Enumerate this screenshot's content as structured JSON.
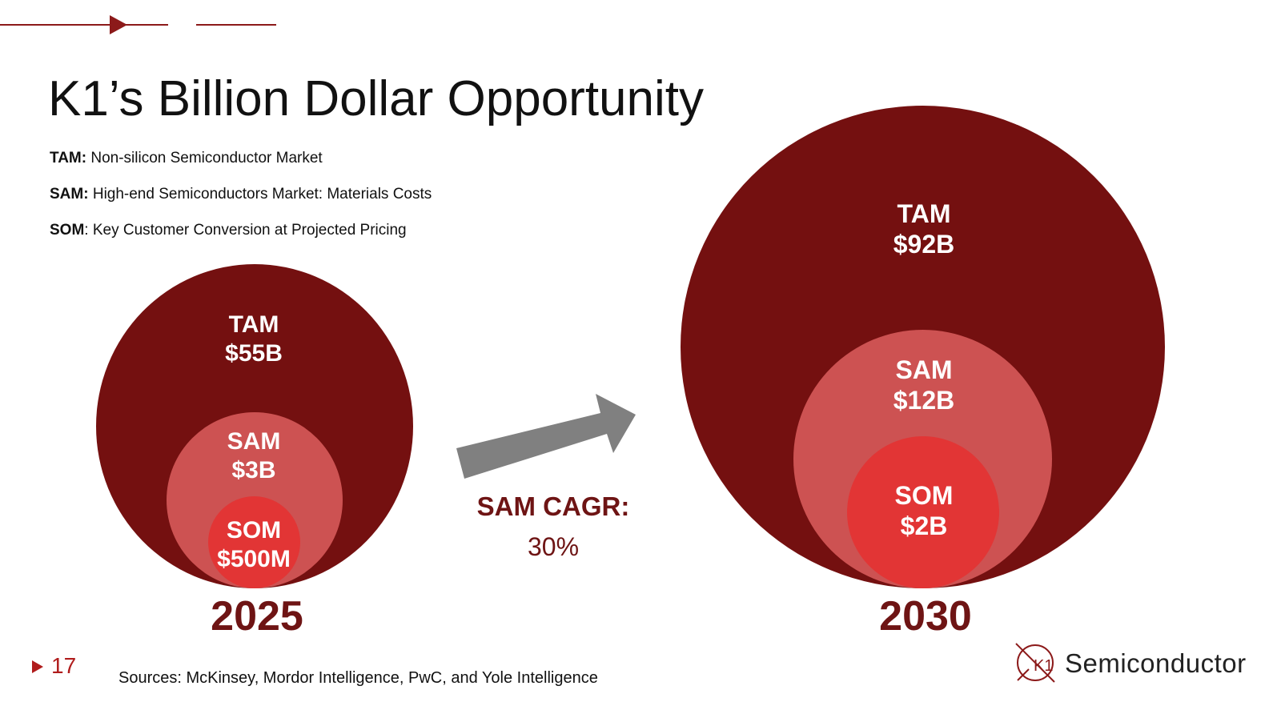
{
  "slide": {
    "title": "K1’s Billion Dollar Opportunity",
    "definitions": [
      {
        "term": "TAM:",
        "text": " Non-silicon Semiconductor Market"
      },
      {
        "term": "SAM:",
        "text": " High-end Semiconductors Market: Materials Costs"
      },
      {
        "term": "SOM",
        "text": ": Key Customer Conversion at Projected Pricing"
      }
    ],
    "page_number": "17",
    "sources": "Sources: McKinsey, Mordor Intelligence, PwC, and Yole Intelligence",
    "logo_text": "Semiconductor",
    "logo_mark": "K1"
  },
  "diagram": {
    "y2025": {
      "year": "2025",
      "tam": {
        "label": "TAM",
        "value": "$55B"
      },
      "sam": {
        "label": "SAM",
        "value": "$3B"
      },
      "som": {
        "label": "SOM",
        "value": "$500M"
      }
    },
    "y2030": {
      "year": "2030",
      "tam": {
        "label": "TAM",
        "value": "$92B"
      },
      "sam": {
        "label": "SAM",
        "value": "$12B"
      },
      "som": {
        "label": "SOM",
        "value": "$2B"
      }
    },
    "growth": {
      "label": "SAM CAGR:",
      "value": "30%"
    }
  },
  "colors": {
    "tam": "#741010",
    "sam": "#cd5252",
    "som": "#e23535",
    "accent": "#6e1414",
    "arrow": "#808080",
    "bullet": "#b01c1c"
  },
  "icons": {
    "top_line": "arrow-line-icon",
    "growth_arrow": "right-up-arrow-icon",
    "page_marker": "triangle-right-icon",
    "logo": "k1-circle-logo"
  }
}
